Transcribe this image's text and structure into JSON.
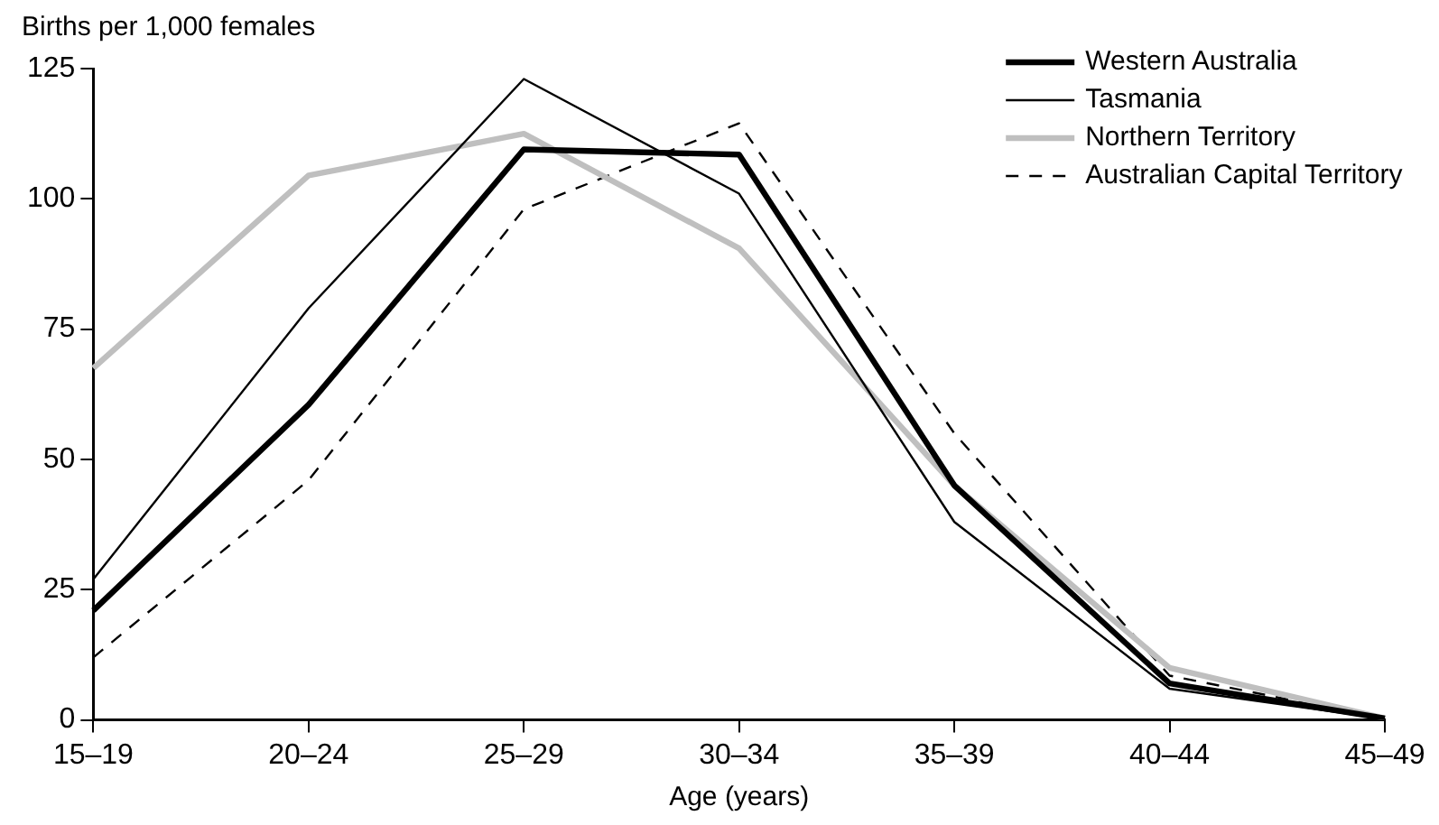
{
  "chart_data": {
    "type": "line",
    "ylabel": "Births per 1,000 females",
    "xlabel": "Age (years)",
    "categories": [
      "15–19",
      "20–24",
      "25–29",
      "30–34",
      "35–39",
      "40–44",
      "45–49"
    ],
    "series": [
      {
        "name": "Western Australia",
        "color": "#000000",
        "values": [
          21,
          60.5,
          109.5,
          108.5,
          45,
          7,
          0.3
        ]
      },
      {
        "name": "Tasmania",
        "color": "#000000",
        "values": [
          27,
          79,
          123,
          101,
          38,
          6,
          0.2
        ]
      },
      {
        "name": "Northern Territory",
        "color": "#bfbfbf",
        "values": [
          67.5,
          104.5,
          112.5,
          90.5,
          45,
          10,
          0.3
        ]
      },
      {
        "name": "Australian Capital Territory",
        "color": "#000000",
        "line_style": "dashed",
        "values": [
          12,
          46,
          98,
          114.5,
          55,
          8.5,
          0.2
        ]
      }
    ],
    "ylim": [
      0,
      125
    ],
    "yticks": [
      0,
      25,
      50,
      75,
      100,
      125
    ],
    "grid": false,
    "legend": "top right",
    "marker": "none"
  }
}
